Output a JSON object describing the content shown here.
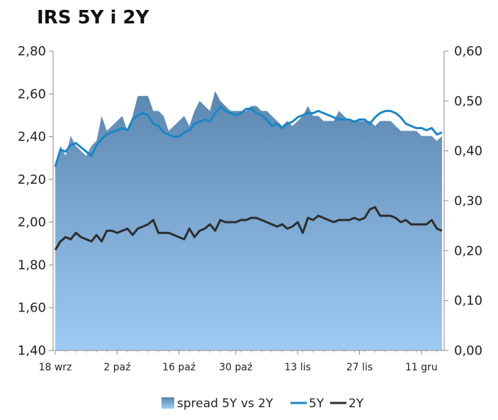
{
  "chart_data": {
    "type": "area+line",
    "title": "IRS 5Y i 2Y",
    "x_labels": [
      "18 wrz",
      "2 paź",
      "16 paź",
      "30 paź",
      "13 lis",
      "27 lis",
      "11 gru"
    ],
    "y_left": {
      "min": 1.4,
      "max": 2.8,
      "ticks": [
        "1,40",
        "1,60",
        "1,80",
        "2,00",
        "2,20",
        "2,40",
        "2,60",
        "2,80"
      ]
    },
    "y_right": {
      "min": 0.0,
      "max": 0.6,
      "ticks": [
        "0,00",
        "0,10",
        "0,20",
        "0,30",
        "0,40",
        "0,50",
        "0,60"
      ]
    },
    "series": [
      {
        "name": "spread 5Y vs 2Y",
        "axis": "right",
        "kind": "area",
        "color_top": "#5b86b0",
        "color_bottom": "#9ecbf5",
        "values": [
          0.37,
          0.41,
          0.39,
          0.43,
          0.41,
          0.4,
          0.39,
          0.41,
          0.42,
          0.47,
          0.44,
          0.45,
          0.46,
          0.47,
          0.44,
          0.47,
          0.51,
          0.51,
          0.51,
          0.48,
          0.48,
          0.47,
          0.44,
          0.45,
          0.46,
          0.47,
          0.45,
          0.48,
          0.5,
          0.49,
          0.48,
          0.52,
          0.5,
          0.49,
          0.48,
          0.48,
          0.48,
          0.48,
          0.49,
          0.49,
          0.48,
          0.48,
          0.47,
          0.46,
          0.45,
          0.46,
          0.45,
          0.46,
          0.47,
          0.49,
          0.47,
          0.47,
          0.46,
          0.46,
          0.46,
          0.48,
          0.47,
          0.46,
          0.46,
          0.46,
          0.46,
          0.46,
          0.45,
          0.46,
          0.46,
          0.46,
          0.45,
          0.44,
          0.44,
          0.44,
          0.44,
          0.43,
          0.43,
          0.43,
          0.42,
          0.43
        ]
      },
      {
        "name": "5Y",
        "axis": "left",
        "kind": "line",
        "color": "#1b86c4",
        "values": [
          2.26,
          2.34,
          2.33,
          2.36,
          2.37,
          2.35,
          2.33,
          2.31,
          2.36,
          2.39,
          2.41,
          2.42,
          2.43,
          2.44,
          2.43,
          2.48,
          2.5,
          2.51,
          2.5,
          2.46,
          2.45,
          2.42,
          2.41,
          2.4,
          2.4,
          2.42,
          2.43,
          2.46,
          2.47,
          2.48,
          2.47,
          2.51,
          2.54,
          2.52,
          2.51,
          2.5,
          2.51,
          2.53,
          2.53,
          2.51,
          2.5,
          2.48,
          2.45,
          2.46,
          2.44,
          2.46,
          2.47,
          2.49,
          2.5,
          2.51,
          2.51,
          2.52,
          2.51,
          2.5,
          2.49,
          2.48,
          2.48,
          2.48,
          2.47,
          2.48,
          2.48,
          2.46,
          2.49,
          2.51,
          2.52,
          2.52,
          2.51,
          2.49,
          2.46,
          2.45,
          2.44,
          2.44,
          2.43,
          2.44,
          2.41,
          2.42
        ]
      },
      {
        "name": "2Y",
        "axis": "left",
        "kind": "line",
        "color": "#2d2d2d",
        "values": [
          1.87,
          1.91,
          1.93,
          1.92,
          1.95,
          1.93,
          1.92,
          1.91,
          1.94,
          1.91,
          1.96,
          1.96,
          1.95,
          1.96,
          1.97,
          1.94,
          1.97,
          1.98,
          1.99,
          2.01,
          1.95,
          1.95,
          1.95,
          1.94,
          1.93,
          1.92,
          1.97,
          1.93,
          1.96,
          1.97,
          1.99,
          1.96,
          2.01,
          2.0,
          2.0,
          2.0,
          2.01,
          2.01,
          2.02,
          2.02,
          2.01,
          2.0,
          1.99,
          1.98,
          1.99,
          1.97,
          1.98,
          2.0,
          1.95,
          2.02,
          2.01,
          2.03,
          2.02,
          2.01,
          2.0,
          2.01,
          2.01,
          2.01,
          2.02,
          2.01,
          2.02,
          2.06,
          2.07,
          2.03,
          2.03,
          2.03,
          2.02,
          2.0,
          2.01,
          1.99,
          1.99,
          1.99,
          1.99,
          2.01,
          1.97,
          1.96
        ]
      }
    ],
    "legend": {
      "position": "bottom",
      "entries": [
        "spread 5Y vs 2Y",
        "5Y",
        "2Y"
      ]
    },
    "grid": false
  }
}
